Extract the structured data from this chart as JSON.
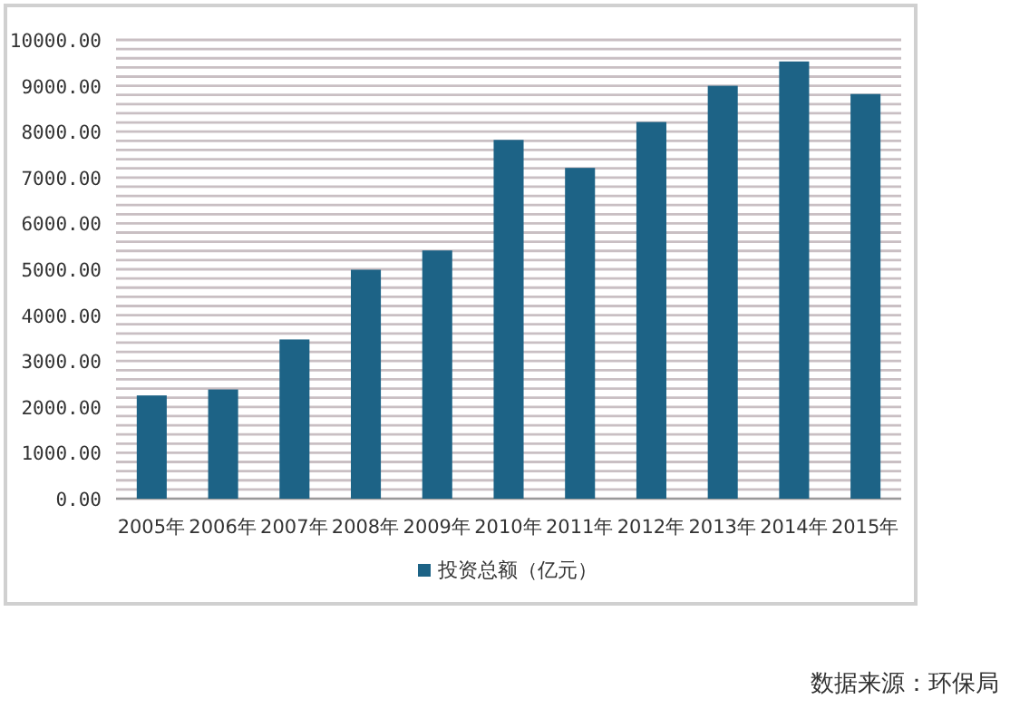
{
  "chart_data": {
    "type": "bar",
    "categories": [
      "2005年",
      "2006年",
      "2007年",
      "2008年",
      "2009年",
      "2010年",
      "2011年",
      "2012年",
      "2013年",
      "2014年",
      "2015年"
    ],
    "series": [
      {
        "name": "投资总额（亿元）",
        "color": "#1d6386",
        "values": [
          2250,
          2380,
          3470,
          4990,
          5410,
          7820,
          7210,
          8210,
          9000,
          9530,
          8820
        ]
      }
    ],
    "ylim": [
      0,
      10000
    ],
    "yticks": [
      {
        "value": 0,
        "label": "0.00"
      },
      {
        "value": 200,
        "label": null
      },
      {
        "value": 400,
        "label": null
      },
      {
        "value": 600,
        "label": null
      },
      {
        "value": 800,
        "label": null
      },
      {
        "value": 1000,
        "label": "1000.00"
      },
      {
        "value": 1200,
        "label": null
      },
      {
        "value": 1400,
        "label": null
      },
      {
        "value": 1600,
        "label": null
      },
      {
        "value": 1800,
        "label": null
      },
      {
        "value": 2000,
        "label": "2000.00"
      },
      {
        "value": 2200,
        "label": null
      },
      {
        "value": 2400,
        "label": null
      },
      {
        "value": 2600,
        "label": null
      },
      {
        "value": 2800,
        "label": null
      },
      {
        "value": 3000,
        "label": "3000.00"
      },
      {
        "value": 3200,
        "label": null
      },
      {
        "value": 3400,
        "label": null
      },
      {
        "value": 3600,
        "label": null
      },
      {
        "value": 3800,
        "label": null
      },
      {
        "value": 4000,
        "label": "4000.00"
      },
      {
        "value": 4200,
        "label": null
      },
      {
        "value": 4400,
        "label": null
      },
      {
        "value": 4600,
        "label": null
      },
      {
        "value": 4800,
        "label": null
      },
      {
        "value": 5000,
        "label": "5000.00"
      },
      {
        "value": 5200,
        "label": null
      },
      {
        "value": 5400,
        "label": null
      },
      {
        "value": 5600,
        "label": null
      },
      {
        "value": 5800,
        "label": null
      },
      {
        "value": 6000,
        "label": "6000.00"
      },
      {
        "value": 6200,
        "label": null
      },
      {
        "value": 6400,
        "label": null
      },
      {
        "value": 6600,
        "label": null
      },
      {
        "value": 6800,
        "label": null
      },
      {
        "value": 7000,
        "label": "7000.00"
      },
      {
        "value": 7200,
        "label": null
      },
      {
        "value": 7400,
        "label": null
      },
      {
        "value": 7600,
        "label": null
      },
      {
        "value": 7800,
        "label": null
      },
      {
        "value": 8000,
        "label": "8000.00"
      },
      {
        "value": 8200,
        "label": null
      },
      {
        "value": 8400,
        "label": null
      },
      {
        "value": 8600,
        "label": null
      },
      {
        "value": 8800,
        "label": null
      },
      {
        "value": 9000,
        "label": "9000.00"
      },
      {
        "value": 9200,
        "label": null
      },
      {
        "value": 9400,
        "label": null
      },
      {
        "value": 9600,
        "label": null
      },
      {
        "value": 9800,
        "label": null
      },
      {
        "value": 10000,
        "label": "10000.00"
      }
    ],
    "grid": "y",
    "legend": "bottom",
    "annotations": [
      "数据来源：环保局"
    ]
  }
}
